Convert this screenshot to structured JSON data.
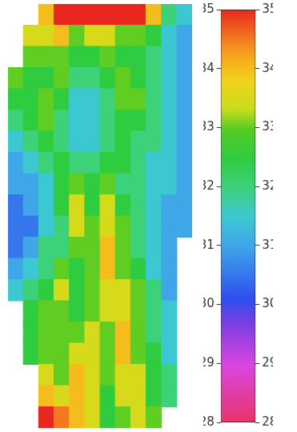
{
  "chart_data": {
    "type": "heatmap",
    "cells": [
      [
        null,
        null,
        34,
        35,
        35,
        35,
        35,
        35,
        35,
        34,
        32,
        31.5
      ],
      [
        null,
        33.5,
        33.5,
        34,
        33,
        33.5,
        33.5,
        33,
        33,
        32.5,
        31.5,
        31
      ],
      [
        null,
        33,
        33,
        33,
        32.5,
        32.5,
        33,
        32.5,
        32.5,
        32,
        31.5,
        31
      ],
      [
        33,
        32.5,
        32.5,
        33,
        32,
        32,
        32.5,
        33,
        32.5,
        32,
        31.5,
        31
      ],
      [
        32.5,
        32.5,
        33,
        32.5,
        31.5,
        31.5,
        32,
        33,
        33,
        32,
        31.5,
        31
      ],
      [
        32,
        32.5,
        33,
        32,
        31.5,
        31.5,
        32,
        32.5,
        32.5,
        32,
        31.5,
        31
      ],
      [
        31.5,
        32,
        32.5,
        32,
        31.5,
        31.5,
        32,
        32.5,
        32,
        32,
        31.5,
        31
      ],
      [
        31,
        31.5,
        32,
        32.5,
        32,
        32,
        32.5,
        32.5,
        32,
        31.5,
        31.5,
        31
      ],
      [
        31,
        31,
        31.5,
        32.5,
        33,
        32.5,
        33,
        32,
        32,
        31.5,
        31.5,
        31
      ],
      [
        30.5,
        31,
        31.5,
        32.5,
        33.5,
        32.5,
        33.5,
        32.5,
        32,
        31.5,
        31,
        31
      ],
      [
        30.5,
        30.5,
        31.5,
        32,
        33.5,
        33,
        33.5,
        33,
        32,
        31.5,
        31,
        31
      ],
      [
        30.5,
        31,
        32,
        32,
        33,
        33,
        34,
        33,
        32,
        31.5,
        31,
        null
      ],
      [
        31,
        31.5,
        32,
        33,
        32.5,
        33,
        34,
        33,
        32.5,
        31.5,
        31,
        null
      ],
      [
        31.5,
        32,
        32.5,
        33.5,
        32.5,
        33,
        33.5,
        33.5,
        33,
        32,
        31,
        null
      ],
      [
        null,
        32.5,
        33,
        33,
        32.5,
        33,
        33.5,
        33.5,
        33,
        32,
        31.5,
        null
      ],
      [
        null,
        32.5,
        33,
        33,
        33,
        33.5,
        33,
        34,
        33,
        32,
        31.5,
        null
      ],
      [
        null,
        32.5,
        33,
        33,
        33.5,
        33.5,
        33,
        34,
        33,
        32.5,
        31.5,
        null
      ],
      [
        null,
        null,
        33.5,
        33,
        34,
        33.5,
        33,
        33.5,
        33.5,
        32.5,
        32,
        null
      ],
      [
        null,
        null,
        34,
        33.5,
        34,
        33.5,
        32.5,
        33.5,
        33.5,
        32.5,
        32,
        null
      ],
      [
        null,
        null,
        35,
        34.5,
        34,
        33.5,
        32.5,
        33,
        33.5,
        33,
        null,
        null
      ]
    ],
    "colorbar": {
      "range": [
        28,
        35
      ],
      "ticks": [
        28,
        29,
        30,
        31,
        32,
        33,
        34,
        35
      ]
    },
    "tick_labels": false
  }
}
